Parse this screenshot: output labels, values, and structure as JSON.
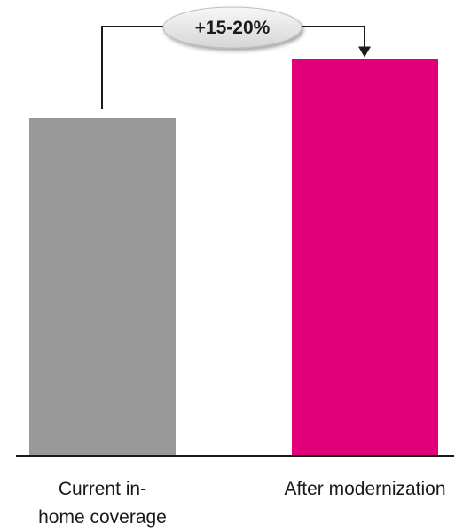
{
  "chart_data": {
    "type": "bar",
    "categories": [
      "Current in-home coverage",
      "After modernization"
    ],
    "category_label_lines": [
      [
        "Current in-",
        "home coverage"
      ],
      [
        "After modernization"
      ]
    ],
    "values": [
      100,
      117.5
    ],
    "ylim": [
      0,
      120
    ],
    "grid": false,
    "colors": [
      "#999999",
      "#e2007a"
    ],
    "annotation": {
      "label": "+15-20%",
      "from": "Current in-home coverage",
      "to": "After modernization"
    }
  }
}
